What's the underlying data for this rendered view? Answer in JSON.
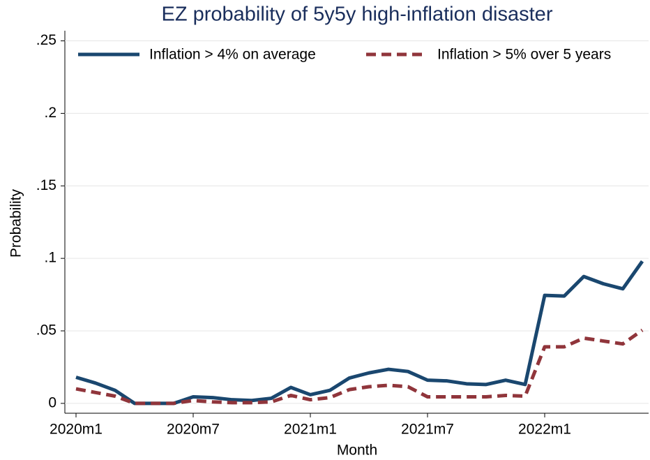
{
  "chart_data": {
    "type": "line",
    "title": "EZ probability of 5y5y high-inflation disaster",
    "x_label": "Month",
    "y_label": "Probability",
    "categories": [
      "2020m1",
      null,
      null,
      null,
      null,
      null,
      "2020m7",
      null,
      null,
      null,
      null,
      null,
      "2021m1",
      null,
      null,
      null,
      null,
      null,
      "2021m7",
      null,
      null,
      null,
      null,
      null,
      "2022m1",
      null,
      null,
      null,
      null,
      null
    ],
    "series": [
      {
        "name": "Inflation > 4% on average",
        "color": "#1a476f",
        "line_style": "solid",
        "values": [
          0.018,
          0.014,
          0.009,
          0,
          0,
          0,
          0.0045,
          0.004,
          0.0025,
          0.002,
          0.0035,
          0.011,
          0.006,
          0.009,
          0.0175,
          0.021,
          0.0235,
          0.022,
          0.016,
          0.0155,
          0.0135,
          0.013,
          0.016,
          0.013,
          0.0745,
          0.074,
          0.0875,
          0.0825,
          0.079,
          0.098
        ]
      },
      {
        "name": "Inflation > 5% over 5 years",
        "color": "#90353b",
        "line_style": "dashed",
        "values": [
          0.01,
          0.0075,
          0.005,
          0,
          0,
          0,
          0.002,
          0.001,
          0.0005,
          0.0005,
          0.001,
          0.0055,
          0.0025,
          0.004,
          0.0095,
          0.0115,
          0.0125,
          0.0115,
          0.0045,
          0.0045,
          0.0045,
          0.0045,
          0.0055,
          0.005,
          0.039,
          0.039,
          0.045,
          0.043,
          0.041,
          0.0505
        ]
      }
    ],
    "ylim": [
      -0.0068,
      0.257
    ],
    "yticks": [
      0,
      {
        "value": 0.05,
        "label": ".05"
      },
      {
        "value": 0.1,
        "label": ".1"
      },
      {
        "value": 0.15,
        "label": ".15"
      },
      {
        "value": 0.2,
        "label": ".2"
      },
      {
        "value": 0.25,
        "label": ".25"
      }
    ],
    "grid": true,
    "legend": "top"
  }
}
